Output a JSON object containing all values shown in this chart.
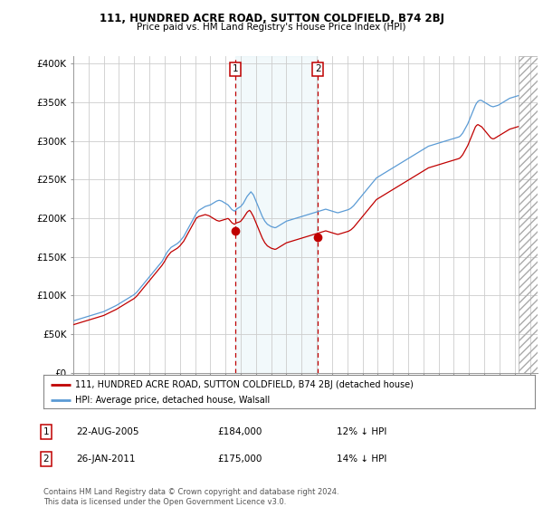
{
  "title1": "111, HUNDRED ACRE ROAD, SUTTON COLDFIELD, B74 2BJ",
  "title2": "Price paid vs. HM Land Registry's House Price Index (HPI)",
  "ylabel_ticks": [
    "£0",
    "£50K",
    "£100K",
    "£150K",
    "£200K",
    "£250K",
    "£300K",
    "£350K",
    "£400K"
  ],
  "ytick_values": [
    0,
    50000,
    100000,
    150000,
    200000,
    250000,
    300000,
    350000,
    400000
  ],
  "ylim": [
    0,
    410000
  ],
  "xlim_start": 1995.0,
  "xlim_end": 2025.5,
  "hpi_color": "#5b9bd5",
  "price_color": "#C00000",
  "marker1_x": 2005.64,
  "marker1_y": 184000,
  "marker1_date": "22-AUG-2005",
  "marker1_price": "£184,000",
  "marker1_hpi": "12% ↓ HPI",
  "marker2_x": 2011.07,
  "marker2_y": 175000,
  "marker2_date": "26-JAN-2011",
  "marker2_price": "£175,000",
  "marker2_hpi": "14% ↓ HPI",
  "legend_line1": "111, HUNDRED ACRE ROAD, SUTTON COLDFIELD, B74 2BJ (detached house)",
  "legend_line2": "HPI: Average price, detached house, Walsall",
  "footnote": "Contains HM Land Registry data © Crown copyright and database right 2024.\nThis data is licensed under the Open Government Licence v3.0.",
  "background_color": "#ffffff",
  "plot_bg_color": "#ffffff",
  "grid_color": "#cccccc",
  "hpi_x": [
    1995.0,
    1995.083,
    1995.167,
    1995.25,
    1995.333,
    1995.417,
    1995.5,
    1995.583,
    1995.667,
    1995.75,
    1995.833,
    1995.917,
    1996.0,
    1996.083,
    1996.167,
    1996.25,
    1996.333,
    1996.417,
    1996.5,
    1996.583,
    1996.667,
    1996.75,
    1996.833,
    1996.917,
    1997.0,
    1997.083,
    1997.167,
    1997.25,
    1997.333,
    1997.417,
    1997.5,
    1997.583,
    1997.667,
    1997.75,
    1997.833,
    1997.917,
    1998.0,
    1998.083,
    1998.167,
    1998.25,
    1998.333,
    1998.417,
    1998.5,
    1998.583,
    1998.667,
    1998.75,
    1998.833,
    1998.917,
    1999.0,
    1999.083,
    1999.167,
    1999.25,
    1999.333,
    1999.417,
    1999.5,
    1999.583,
    1999.667,
    1999.75,
    1999.833,
    1999.917,
    2000.0,
    2000.083,
    2000.167,
    2000.25,
    2000.333,
    2000.417,
    2000.5,
    2000.583,
    2000.667,
    2000.75,
    2000.833,
    2000.917,
    2001.0,
    2001.083,
    2001.167,
    2001.25,
    2001.333,
    2001.417,
    2001.5,
    2001.583,
    2001.667,
    2001.75,
    2001.833,
    2001.917,
    2002.0,
    2002.083,
    2002.167,
    2002.25,
    2002.333,
    2002.417,
    2002.5,
    2002.583,
    2002.667,
    2002.75,
    2002.833,
    2002.917,
    2003.0,
    2003.083,
    2003.167,
    2003.25,
    2003.333,
    2003.417,
    2003.5,
    2003.583,
    2003.667,
    2003.75,
    2003.833,
    2003.917,
    2004.0,
    2004.083,
    2004.167,
    2004.25,
    2004.333,
    2004.417,
    2004.5,
    2004.583,
    2004.667,
    2004.75,
    2004.833,
    2004.917,
    2005.0,
    2005.083,
    2005.167,
    2005.25,
    2005.333,
    2005.417,
    2005.5,
    2005.583,
    2005.667,
    2005.75,
    2005.833,
    2005.917,
    2006.0,
    2006.083,
    2006.167,
    2006.25,
    2006.333,
    2006.417,
    2006.5,
    2006.583,
    2006.667,
    2006.75,
    2006.833,
    2006.917,
    2007.0,
    2007.083,
    2007.167,
    2007.25,
    2007.333,
    2007.417,
    2007.5,
    2007.583,
    2007.667,
    2007.75,
    2007.833,
    2007.917,
    2008.0,
    2008.083,
    2008.167,
    2008.25,
    2008.333,
    2008.417,
    2008.5,
    2008.583,
    2008.667,
    2008.75,
    2008.833,
    2008.917,
    2009.0,
    2009.083,
    2009.167,
    2009.25,
    2009.333,
    2009.417,
    2009.5,
    2009.583,
    2009.667,
    2009.75,
    2009.833,
    2009.917,
    2010.0,
    2010.083,
    2010.167,
    2010.25,
    2010.333,
    2010.417,
    2010.5,
    2010.583,
    2010.667,
    2010.75,
    2010.833,
    2010.917,
    2011.0,
    2011.083,
    2011.167,
    2011.25,
    2011.333,
    2011.417,
    2011.5,
    2011.583,
    2011.667,
    2011.75,
    2011.833,
    2011.917,
    2012.0,
    2012.083,
    2012.167,
    2012.25,
    2012.333,
    2012.417,
    2012.5,
    2012.583,
    2012.667,
    2012.75,
    2012.833,
    2012.917,
    2013.0,
    2013.083,
    2013.167,
    2013.25,
    2013.333,
    2013.417,
    2013.5,
    2013.583,
    2013.667,
    2013.75,
    2013.833,
    2013.917,
    2014.0,
    2014.083,
    2014.167,
    2014.25,
    2014.333,
    2014.417,
    2014.5,
    2014.583,
    2014.667,
    2014.75,
    2014.833,
    2014.917,
    2015.0,
    2015.083,
    2015.167,
    2015.25,
    2015.333,
    2015.417,
    2015.5,
    2015.583,
    2015.667,
    2015.75,
    2015.833,
    2015.917,
    2016.0,
    2016.083,
    2016.167,
    2016.25,
    2016.333,
    2016.417,
    2016.5,
    2016.583,
    2016.667,
    2016.75,
    2016.833,
    2016.917,
    2017.0,
    2017.083,
    2017.167,
    2017.25,
    2017.333,
    2017.417,
    2017.5,
    2017.583,
    2017.667,
    2017.75,
    2017.833,
    2017.917,
    2018.0,
    2018.083,
    2018.167,
    2018.25,
    2018.333,
    2018.417,
    2018.5,
    2018.583,
    2018.667,
    2018.75,
    2018.833,
    2018.917,
    2019.0,
    2019.083,
    2019.167,
    2019.25,
    2019.333,
    2019.417,
    2019.5,
    2019.583,
    2019.667,
    2019.75,
    2019.833,
    2019.917,
    2020.0,
    2020.083,
    2020.167,
    2020.25,
    2020.333,
    2020.417,
    2020.5,
    2020.583,
    2020.667,
    2020.75,
    2020.833,
    2020.917,
    2021.0,
    2021.083,
    2021.167,
    2021.25,
    2021.333,
    2021.417,
    2021.5,
    2021.583,
    2021.667,
    2021.75,
    2021.833,
    2021.917,
    2022.0,
    2022.083,
    2022.167,
    2022.25,
    2022.333,
    2022.417,
    2022.5,
    2022.583,
    2022.667,
    2022.75,
    2022.833,
    2022.917,
    2023.0,
    2023.083,
    2023.167,
    2023.25,
    2023.333,
    2023.417,
    2023.5,
    2023.583,
    2023.667,
    2023.75,
    2023.833,
    2023.917,
    2024.0,
    2024.083,
    2024.167,
    2024.25
  ],
  "hpi_y": [
    67000,
    67500,
    68000,
    68500,
    69000,
    69500,
    70000,
    70500,
    71000,
    71500,
    72000,
    72500,
    73000,
    73500,
    74000,
    74500,
    75000,
    75500,
    76000,
    76500,
    77000,
    77500,
    78000,
    78500,
    79000,
    79800,
    80600,
    81400,
    82200,
    83000,
    83800,
    84600,
    85400,
    86200,
    87000,
    88000,
    89000,
    90000,
    91000,
    92000,
    93000,
    94000,
    95000,
    96000,
    97000,
    98000,
    99000,
    100000,
    101000,
    102500,
    104000,
    106000,
    108000,
    110000,
    112000,
    114000,
    116000,
    118000,
    120000,
    122000,
    124000,
    126000,
    128000,
    130000,
    132000,
    134000,
    136000,
    138000,
    140000,
    142000,
    144000,
    147000,
    150000,
    153000,
    156000,
    158000,
    160000,
    162000,
    163000,
    164000,
    165000,
    166000,
    167000,
    168500,
    170000,
    172000,
    174000,
    176000,
    179000,
    182000,
    185000,
    188000,
    191000,
    194000,
    197000,
    200000,
    203000,
    206000,
    208000,
    210000,
    211000,
    212000,
    213000,
    214000,
    215000,
    215500,
    216000,
    216500,
    217000,
    218000,
    219000,
    220000,
    221000,
    222000,
    222500,
    223000,
    222500,
    222000,
    221000,
    220000,
    219000,
    218000,
    217000,
    215000,
    213000,
    211000,
    210000,
    209000,
    210000,
    212000,
    213000,
    214000,
    215000,
    217000,
    219000,
    222000,
    225000,
    228000,
    230000,
    232000,
    234000,
    232000,
    230000,
    226000,
    222000,
    218000,
    214000,
    210000,
    206000,
    202000,
    199000,
    196000,
    194000,
    192000,
    191000,
    190000,
    189000,
    188500,
    188000,
    187500,
    188000,
    189000,
    190000,
    191000,
    192000,
    193000,
    194000,
    195000,
    196000,
    196500,
    197000,
    197500,
    198000,
    198500,
    199000,
    199500,
    200000,
    200500,
    201000,
    201500,
    202000,
    202500,
    203000,
    203500,
    204000,
    204500,
    205000,
    205500,
    206000,
    206500,
    207000,
    207500,
    208000,
    208500,
    209000,
    209500,
    210000,
    210500,
    211000,
    211500,
    211000,
    210500,
    210000,
    209500,
    209000,
    208500,
    208000,
    207500,
    207000,
    207000,
    207500,
    208000,
    208500,
    209000,
    209500,
    210000,
    210500,
    211000,
    212000,
    213000,
    214500,
    216000,
    218000,
    220000,
    222000,
    224000,
    226000,
    228000,
    230000,
    232000,
    234000,
    236000,
    238000,
    240000,
    242000,
    244000,
    246000,
    248000,
    250000,
    252000,
    253000,
    254000,
    255000,
    256000,
    257000,
    258000,
    259000,
    260000,
    261000,
    262000,
    263000,
    264000,
    265000,
    266000,
    267000,
    268000,
    269000,
    270000,
    271000,
    272000,
    273000,
    274000,
    275000,
    276000,
    277000,
    278000,
    279000,
    280000,
    281000,
    282000,
    283000,
    284000,
    285000,
    286000,
    287000,
    288000,
    289000,
    290000,
    291000,
    292000,
    293000,
    293500,
    294000,
    294500,
    295000,
    295500,
    296000,
    296500,
    297000,
    297500,
    298000,
    298500,
    299000,
    299500,
    300000,
    300500,
    301000,
    301500,
    302000,
    302500,
    303000,
    303500,
    304000,
    304500,
    305000,
    306000,
    308000,
    310000,
    313000,
    316000,
    319000,
    322000,
    326000,
    330000,
    334000,
    338000,
    342000,
    346000,
    349000,
    351000,
    352000,
    352500,
    352000,
    351000,
    350000,
    349000,
    348000,
    347000,
    346000,
    345000,
    344500,
    344000,
    344500,
    345000,
    345500,
    346000,
    347000,
    348000,
    349000,
    350000,
    351000,
    352000,
    353000,
    354000,
    355000,
    355500,
    356000,
    356500,
    357000,
    357500,
    358000,
    358500
  ],
  "price_x": [
    1995.0,
    1995.083,
    1995.167,
    1995.25,
    1995.333,
    1995.417,
    1995.5,
    1995.583,
    1995.667,
    1995.75,
    1995.833,
    1995.917,
    1996.0,
    1996.083,
    1996.167,
    1996.25,
    1996.333,
    1996.417,
    1996.5,
    1996.583,
    1996.667,
    1996.75,
    1996.833,
    1996.917,
    1997.0,
    1997.083,
    1997.167,
    1997.25,
    1997.333,
    1997.417,
    1997.5,
    1997.583,
    1997.667,
    1997.75,
    1997.833,
    1997.917,
    1998.0,
    1998.083,
    1998.167,
    1998.25,
    1998.333,
    1998.417,
    1998.5,
    1998.583,
    1998.667,
    1998.75,
    1998.833,
    1998.917,
    1999.0,
    1999.083,
    1999.167,
    1999.25,
    1999.333,
    1999.417,
    1999.5,
    1999.583,
    1999.667,
    1999.75,
    1999.833,
    1999.917,
    2000.0,
    2000.083,
    2000.167,
    2000.25,
    2000.333,
    2000.417,
    2000.5,
    2000.583,
    2000.667,
    2000.75,
    2000.833,
    2000.917,
    2001.0,
    2001.083,
    2001.167,
    2001.25,
    2001.333,
    2001.417,
    2001.5,
    2001.583,
    2001.667,
    2001.75,
    2001.833,
    2001.917,
    2002.0,
    2002.083,
    2002.167,
    2002.25,
    2002.333,
    2002.417,
    2002.5,
    2002.583,
    2002.667,
    2002.75,
    2002.833,
    2002.917,
    2003.0,
    2003.083,
    2003.167,
    2003.25,
    2003.333,
    2003.417,
    2003.5,
    2003.583,
    2003.667,
    2003.75,
    2003.833,
    2003.917,
    2004.0,
    2004.083,
    2004.167,
    2004.25,
    2004.333,
    2004.417,
    2004.5,
    2004.583,
    2004.667,
    2004.75,
    2004.833,
    2004.917,
    2005.0,
    2005.083,
    2005.167,
    2005.25,
    2005.333,
    2005.417,
    2005.5,
    2005.583,
    2005.667,
    2005.75,
    2005.833,
    2005.917,
    2006.0,
    2006.083,
    2006.167,
    2006.25,
    2006.333,
    2006.417,
    2006.5,
    2006.583,
    2006.667,
    2006.75,
    2006.833,
    2006.917,
    2007.0,
    2007.083,
    2007.167,
    2007.25,
    2007.333,
    2007.417,
    2007.5,
    2007.583,
    2007.667,
    2007.75,
    2007.833,
    2007.917,
    2008.0,
    2008.083,
    2008.167,
    2008.25,
    2008.333,
    2008.417,
    2008.5,
    2008.583,
    2008.667,
    2008.75,
    2008.833,
    2008.917,
    2009.0,
    2009.083,
    2009.167,
    2009.25,
    2009.333,
    2009.417,
    2009.5,
    2009.583,
    2009.667,
    2009.75,
    2009.833,
    2009.917,
    2010.0,
    2010.083,
    2010.167,
    2010.25,
    2010.333,
    2010.417,
    2010.5,
    2010.583,
    2010.667,
    2010.75,
    2010.833,
    2010.917,
    2011.0,
    2011.083,
    2011.167,
    2011.25,
    2011.333,
    2011.417,
    2011.5,
    2011.583,
    2011.667,
    2011.75,
    2011.833,
    2011.917,
    2012.0,
    2012.083,
    2012.167,
    2012.25,
    2012.333,
    2012.417,
    2012.5,
    2012.583,
    2012.667,
    2012.75,
    2012.833,
    2012.917,
    2013.0,
    2013.083,
    2013.167,
    2013.25,
    2013.333,
    2013.417,
    2013.5,
    2013.583,
    2013.667,
    2013.75,
    2013.833,
    2013.917,
    2014.0,
    2014.083,
    2014.167,
    2014.25,
    2014.333,
    2014.417,
    2014.5,
    2014.583,
    2014.667,
    2014.75,
    2014.833,
    2014.917,
    2015.0,
    2015.083,
    2015.167,
    2015.25,
    2015.333,
    2015.417,
    2015.5,
    2015.583,
    2015.667,
    2015.75,
    2015.833,
    2015.917,
    2016.0,
    2016.083,
    2016.167,
    2016.25,
    2016.333,
    2016.417,
    2016.5,
    2016.583,
    2016.667,
    2016.75,
    2016.833,
    2016.917,
    2017.0,
    2017.083,
    2017.167,
    2017.25,
    2017.333,
    2017.417,
    2017.5,
    2017.583,
    2017.667,
    2017.75,
    2017.833,
    2017.917,
    2018.0,
    2018.083,
    2018.167,
    2018.25,
    2018.333,
    2018.417,
    2018.5,
    2018.583,
    2018.667,
    2018.75,
    2018.833,
    2018.917,
    2019.0,
    2019.083,
    2019.167,
    2019.25,
    2019.333,
    2019.417,
    2019.5,
    2019.583,
    2019.667,
    2019.75,
    2019.833,
    2019.917,
    2020.0,
    2020.083,
    2020.167,
    2020.25,
    2020.333,
    2020.417,
    2020.5,
    2020.583,
    2020.667,
    2020.75,
    2020.833,
    2020.917,
    2021.0,
    2021.083,
    2021.167,
    2021.25,
    2021.333,
    2021.417,
    2021.5,
    2021.583,
    2021.667,
    2021.75,
    2021.833,
    2021.917,
    2022.0,
    2022.083,
    2022.167,
    2022.25,
    2022.333,
    2022.417,
    2022.5,
    2022.583,
    2022.667,
    2022.75,
    2022.833,
    2022.917,
    2023.0,
    2023.083,
    2023.167,
    2023.25,
    2023.333,
    2023.417,
    2023.5,
    2023.583,
    2023.667,
    2023.75,
    2023.833,
    2023.917,
    2024.0,
    2024.083,
    2024.167,
    2024.25
  ],
  "price_y": [
    62000,
    62500,
    63000,
    63500,
    64000,
    64500,
    65000,
    65500,
    66000,
    66500,
    67000,
    67500,
    68000,
    68500,
    69000,
    69500,
    70000,
    70500,
    71000,
    71500,
    72000,
    72500,
    73000,
    73500,
    74000,
    74800,
    75600,
    76400,
    77200,
    78000,
    78800,
    79600,
    80400,
    81200,
    82000,
    83000,
    84000,
    85000,
    86000,
    87000,
    88000,
    89000,
    90000,
    91000,
    92000,
    93000,
    94000,
    95000,
    96000,
    97500,
    99000,
    101000,
    103000,
    105000,
    107000,
    109000,
    111000,
    113000,
    115000,
    117000,
    119000,
    121000,
    123000,
    125000,
    127000,
    129000,
    131000,
    133000,
    135000,
    137000,
    139000,
    141500,
    144000,
    147000,
    150000,
    152000,
    154000,
    156000,
    157000,
    158000,
    159000,
    160000,
    161000,
    162500,
    164000,
    166000,
    168000,
    170000,
    173000,
    176000,
    179000,
    182000,
    185000,
    188000,
    191000,
    194000,
    197000,
    200000,
    201000,
    202000,
    202500,
    203000,
    203500,
    204000,
    204500,
    204000,
    203500,
    203000,
    202000,
    201000,
    200000,
    199000,
    198000,
    197000,
    196500,
    196000,
    196500,
    197000,
    197500,
    198000,
    198500,
    199000,
    199500,
    198000,
    196000,
    194000,
    193000,
    192000,
    193000,
    194000,
    194500,
    195000,
    196000,
    198000,
    200000,
    202500,
    205000,
    207500,
    209000,
    210000,
    208000,
    205000,
    202000,
    198000,
    194000,
    190000,
    186000,
    182000,
    178000,
    174000,
    171000,
    168000,
    166000,
    164000,
    163000,
    162000,
    161000,
    160500,
    160000,
    159500,
    160000,
    161000,
    162000,
    163000,
    164000,
    165000,
    166000,
    167000,
    168000,
    168500,
    169000,
    169500,
    170000,
    170500,
    171000,
    171500,
    172000,
    172500,
    173000,
    173500,
    174000,
    174500,
    175000,
    175500,
    176000,
    176500,
    177000,
    177500,
    178000,
    178500,
    179000,
    179500,
    180000,
    180500,
    181000,
    181500,
    182000,
    182500,
    183000,
    183500,
    183000,
    182500,
    182000,
    181500,
    181000,
    180500,
    180000,
    179500,
    179000,
    179000,
    179500,
    180000,
    180500,
    181000,
    181500,
    182000,
    182500,
    183000,
    184000,
    185000,
    186500,
    188000,
    190000,
    192000,
    194000,
    196000,
    198000,
    200000,
    202000,
    204000,
    206000,
    208000,
    210000,
    212000,
    214000,
    216000,
    218000,
    220000,
    222000,
    224000,
    225000,
    226000,
    227000,
    228000,
    229000,
    230000,
    231000,
    232000,
    233000,
    234000,
    235000,
    236000,
    237000,
    238000,
    239000,
    240000,
    241000,
    242000,
    243000,
    244000,
    245000,
    246000,
    247000,
    248000,
    249000,
    250000,
    251000,
    252000,
    253000,
    254000,
    255000,
    256000,
    257000,
    258000,
    259000,
    260000,
    261000,
    262000,
    263000,
    264000,
    265000,
    265500,
    266000,
    266500,
    267000,
    267500,
    268000,
    268500,
    269000,
    269500,
    270000,
    270500,
    271000,
    271500,
    272000,
    272500,
    273000,
    273500,
    274000,
    274500,
    275000,
    275500,
    276000,
    276500,
    277000,
    278000,
    280000,
    282000,
    285000,
    288000,
    291000,
    294000,
    298000,
    302000,
    306000,
    310000,
    314000,
    318000,
    320000,
    321000,
    320000,
    319000,
    318000,
    316000,
    314000,
    312000,
    310000,
    308000,
    306000,
    304000,
    303000,
    302500,
    303000,
    304000,
    305000,
    306000,
    307000,
    308000,
    309000,
    310000,
    311000,
    312000,
    313000,
    314000,
    315000,
    315500,
    316000,
    316500,
    317000,
    317500,
    318000,
    318500
  ]
}
